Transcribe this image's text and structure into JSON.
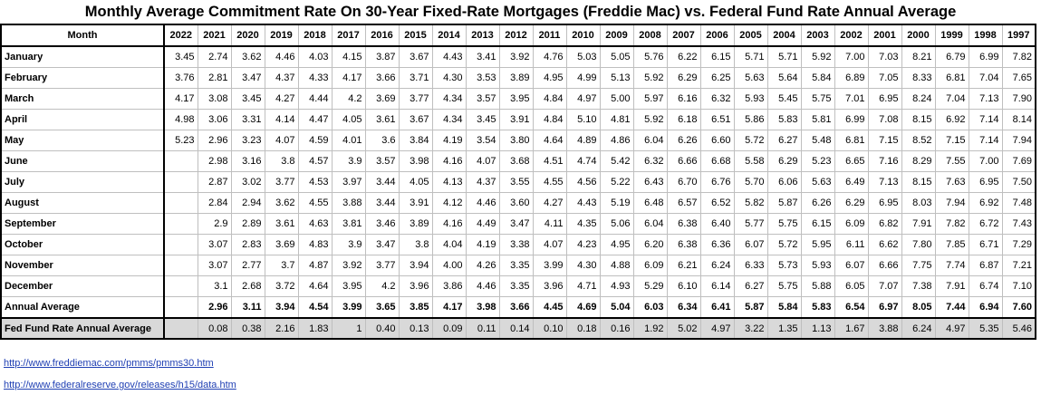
{
  "title": "Monthly Average Commitment Rate On 30-Year Fixed-Rate Mortgages (Freddie Mac) vs. Federal Fund Rate Annual Average",
  "header": {
    "first": "Month",
    "years": [
      "2022",
      "2021",
      "2020",
      "2019",
      "2018",
      "2017",
      "2016",
      "2015",
      "2014",
      "2013",
      "2012",
      "2011",
      "2010",
      "2009",
      "2008",
      "2007",
      "2006",
      "2005",
      "2004",
      "2003",
      "2002",
      "2001",
      "2000",
      "1999",
      "1998",
      "1997"
    ]
  },
  "rows": [
    {
      "label": "January",
      "cells": [
        "3.45",
        "2.74",
        "3.62",
        "4.46",
        "4.03",
        "4.15",
        "3.87",
        "3.67",
        "4.43",
        "3.41",
        "3.92",
        "4.76",
        "5.03",
        "5.05",
        "5.76",
        "6.22",
        "6.15",
        "5.71",
        "5.71",
        "5.92",
        "7.00",
        "7.03",
        "8.21",
        "6.79",
        "6.99",
        "7.82"
      ]
    },
    {
      "label": "February",
      "cells": [
        "3.76",
        "2.81",
        "3.47",
        "4.37",
        "4.33",
        "4.17",
        "3.66",
        "3.71",
        "4.30",
        "3.53",
        "3.89",
        "4.95",
        "4.99",
        "5.13",
        "5.92",
        "6.29",
        "6.25",
        "5.63",
        "5.64",
        "5.84",
        "6.89",
        "7.05",
        "8.33",
        "6.81",
        "7.04",
        "7.65"
      ]
    },
    {
      "label": "March",
      "cells": [
        "4.17",
        "3.08",
        "3.45",
        "4.27",
        "4.44",
        "4.2",
        "3.69",
        "3.77",
        "4.34",
        "3.57",
        "3.95",
        "4.84",
        "4.97",
        "5.00",
        "5.97",
        "6.16",
        "6.32",
        "5.93",
        "5.45",
        "5.75",
        "7.01",
        "6.95",
        "8.24",
        "7.04",
        "7.13",
        "7.90"
      ]
    },
    {
      "label": "April",
      "cells": [
        "4.98",
        "3.06",
        "3.31",
        "4.14",
        "4.47",
        "4.05",
        "3.61",
        "3.67",
        "4.34",
        "3.45",
        "3.91",
        "4.84",
        "5.10",
        "4.81",
        "5.92",
        "6.18",
        "6.51",
        "5.86",
        "5.83",
        "5.81",
        "6.99",
        "7.08",
        "8.15",
        "6.92",
        "7.14",
        "8.14"
      ]
    },
    {
      "label": "May",
      "cells": [
        "5.23",
        "2.96",
        "3.23",
        "4.07",
        "4.59",
        "4.01",
        "3.6",
        "3.84",
        "4.19",
        "3.54",
        "3.80",
        "4.64",
        "4.89",
        "4.86",
        "6.04",
        "6.26",
        "6.60",
        "5.72",
        "6.27",
        "5.48",
        "6.81",
        "7.15",
        "8.52",
        "7.15",
        "7.14",
        "7.94"
      ]
    },
    {
      "label": "June",
      "cells": [
        "",
        "2.98",
        "3.16",
        "3.8",
        "4.57",
        "3.9",
        "3.57",
        "3.98",
        "4.16",
        "4.07",
        "3.68",
        "4.51",
        "4.74",
        "5.42",
        "6.32",
        "6.66",
        "6.68",
        "5.58",
        "6.29",
        "5.23",
        "6.65",
        "7.16",
        "8.29",
        "7.55",
        "7.00",
        "7.69"
      ]
    },
    {
      "label": "July",
      "cells": [
        "",
        "2.87",
        "3.02",
        "3.77",
        "4.53",
        "3.97",
        "3.44",
        "4.05",
        "4.13",
        "4.37",
        "3.55",
        "4.55",
        "4.56",
        "5.22",
        "6.43",
        "6.70",
        "6.76",
        "5.70",
        "6.06",
        "5.63",
        "6.49",
        "7.13",
        "8.15",
        "7.63",
        "6.95",
        "7.50"
      ]
    },
    {
      "label": "August",
      "cells": [
        "",
        "2.84",
        "2.94",
        "3.62",
        "4.55",
        "3.88",
        "3.44",
        "3.91",
        "4.12",
        "4.46",
        "3.60",
        "4.27",
        "4.43",
        "5.19",
        "6.48",
        "6.57",
        "6.52",
        "5.82",
        "5.87",
        "6.26",
        "6.29",
        "6.95",
        "8.03",
        "7.94",
        "6.92",
        "7.48"
      ]
    },
    {
      "label": "September",
      "cells": [
        "",
        "2.9",
        "2.89",
        "3.61",
        "4.63",
        "3.81",
        "3.46",
        "3.89",
        "4.16",
        "4.49",
        "3.47",
        "4.11",
        "4.35",
        "5.06",
        "6.04",
        "6.38",
        "6.40",
        "5.77",
        "5.75",
        "6.15",
        "6.09",
        "6.82",
        "7.91",
        "7.82",
        "6.72",
        "7.43"
      ]
    },
    {
      "label": "October",
      "cells": [
        "",
        "3.07",
        "2.83",
        "3.69",
        "4.83",
        "3.9",
        "3.47",
        "3.8",
        "4.04",
        "4.19",
        "3.38",
        "4.07",
        "4.23",
        "4.95",
        "6.20",
        "6.38",
        "6.36",
        "6.07",
        "5.72",
        "5.95",
        "6.11",
        "6.62",
        "7.80",
        "7.85",
        "6.71",
        "7.29"
      ]
    },
    {
      "label": "November",
      "cells": [
        "",
        "3.07",
        "2.77",
        "3.7",
        "4.87",
        "3.92",
        "3.77",
        "3.94",
        "4.00",
        "4.26",
        "3.35",
        "3.99",
        "4.30",
        "4.88",
        "6.09",
        "6.21",
        "6.24",
        "6.33",
        "5.73",
        "5.93",
        "6.07",
        "6.66",
        "7.75",
        "7.74",
        "6.87",
        "7.21"
      ]
    },
    {
      "label": "December",
      "cells": [
        "",
        "3.1",
        "2.68",
        "3.72",
        "4.64",
        "3.95",
        "4.2",
        "3.96",
        "3.86",
        "4.46",
        "3.35",
        "3.96",
        "4.71",
        "4.93",
        "5.29",
        "6.10",
        "6.14",
        "6.27",
        "5.75",
        "5.88",
        "6.05",
        "7.07",
        "7.38",
        "7.91",
        "6.74",
        "7.10"
      ]
    }
  ],
  "annual": {
    "label": "Annual Average",
    "cells": [
      "",
      "2.96",
      "3.11",
      "3.94",
      "4.54",
      "3.99",
      "3.65",
      "3.85",
      "4.17",
      "3.98",
      "3.66",
      "4.45",
      "4.69",
      "5.04",
      "6.03",
      "6.34",
      "6.41",
      "5.87",
      "5.84",
      "5.83",
      "6.54",
      "6.97",
      "8.05",
      "7.44",
      "6.94",
      "7.60"
    ]
  },
  "fed": {
    "label": "Fed Fund Rate Annual Average",
    "cells": [
      "",
      "0.08",
      "0.38",
      "2.16",
      "1.83",
      "1",
      "0.40",
      "0.13",
      "0.09",
      "0.11",
      "0.14",
      "0.10",
      "0.18",
      "0.16",
      "1.92",
      "5.02",
      "4.97",
      "3.22",
      "1.35",
      "1.13",
      "1.67",
      "3.88",
      "6.24",
      "4.97",
      "5.35",
      "5.46"
    ]
  },
  "links": [
    "http://www.freddiemac.com/pmms/pmms30.htm",
    "http://www.federalreserve.gov/releases/h15/data.htm"
  ]
}
